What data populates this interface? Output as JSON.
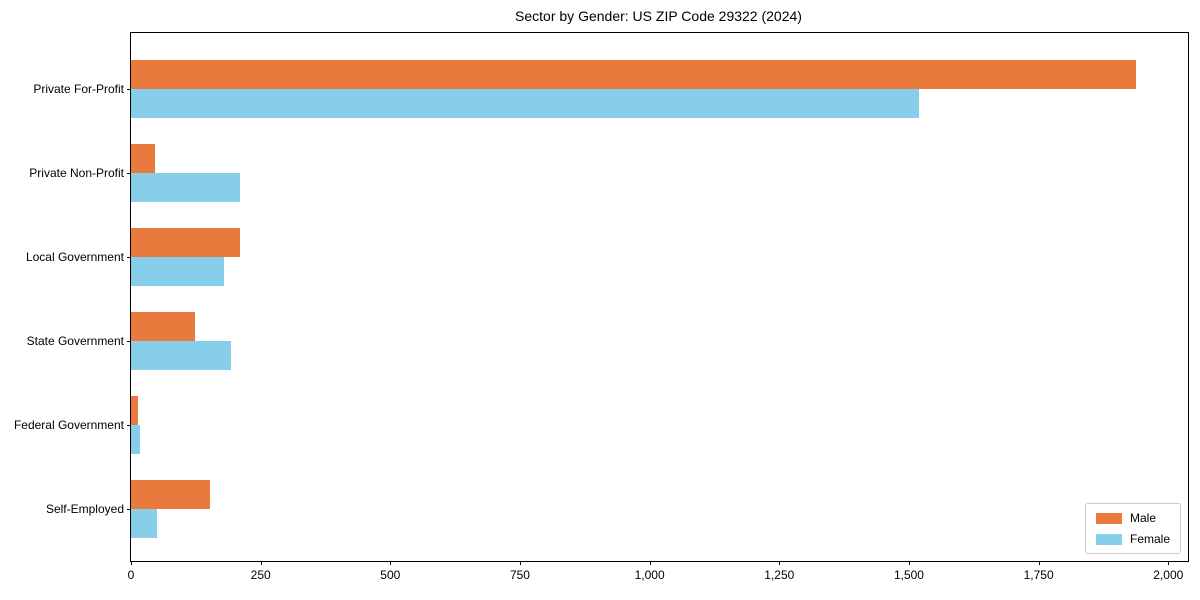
{
  "title": "Sector by Gender: US ZIP Code 29322 (2024)",
  "colors": {
    "male": "#E9793D",
    "female": "#87CEEB",
    "axis": "#000000",
    "legend_border": "#cccccc",
    "background": "#ffffff"
  },
  "legend": {
    "items": [
      {
        "label": "Male"
      },
      {
        "label": "Female"
      }
    ]
  },
  "chart_data": {
    "type": "bar",
    "orientation": "horizontal",
    "title": "Sector by Gender: US ZIP Code 29322 (2024)",
    "categories": [
      "Private For-Profit",
      "Private Non-Profit",
      "Local Government",
      "State Government",
      "Federal Government",
      "Self-Employed"
    ],
    "series": [
      {
        "name": "Male",
        "color": "#E9793D",
        "values": [
          1938,
          47,
          210,
          123,
          14,
          152
        ]
      },
      {
        "name": "Female",
        "color": "#87CEEB",
        "values": [
          1520,
          210,
          180,
          193,
          17,
          50
        ]
      }
    ],
    "xlabel": "",
    "ylabel": "",
    "xlim": [
      0,
      2038
    ],
    "xticks": [
      0,
      250,
      500,
      750,
      1000,
      1250,
      1500,
      1750,
      2000
    ],
    "xtick_labels": [
      "0",
      "250",
      "500",
      "750",
      "1,000",
      "1,250",
      "1,500",
      "1,750",
      "2,000"
    ],
    "grid": false,
    "legend_position": "lower right"
  }
}
